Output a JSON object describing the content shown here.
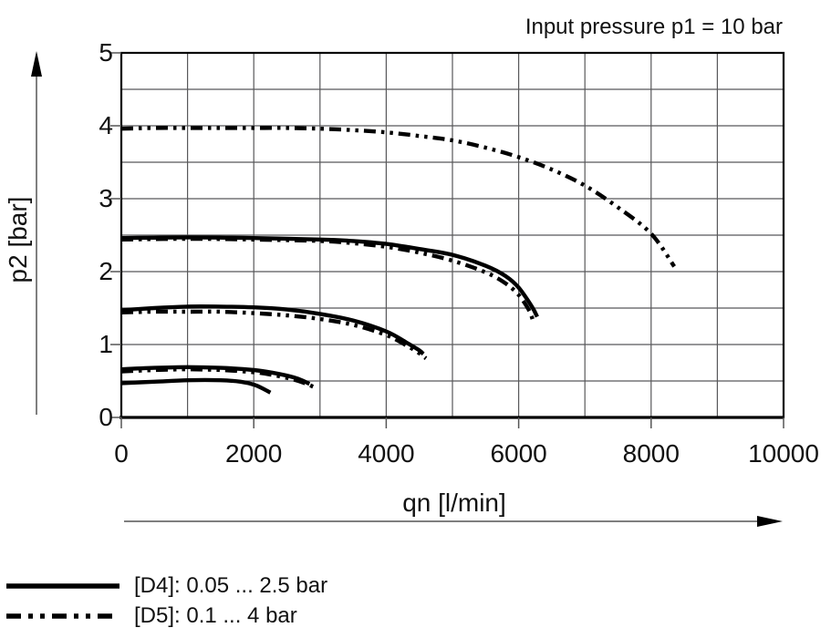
{
  "title": "Input pressure p1 = 10 bar",
  "chart_data": {
    "type": "line",
    "title": "Input pressure p1 = 10 bar",
    "xlabel": "qn [l/min]",
    "ylabel": "p2 [bar]",
    "xlim": [
      0,
      10000
    ],
    "ylim": [
      0,
      5
    ],
    "x_ticks": [
      0,
      2000,
      4000,
      6000,
      8000,
      10000
    ],
    "y_ticks": [
      0,
      1,
      2,
      3,
      4,
      5
    ],
    "x_grid_step": 1000,
    "y_grid_step": 0.5,
    "grid": "on",
    "colors": {
      "curve": "#000000",
      "grid": "#58585a",
      "axis": "#000000",
      "tick": "#555555",
      "text": "#111111"
    },
    "series": [
      {
        "id": "d5-4bar",
        "name": "[D5] setting 4 bar",
        "style": "dash-dot-dot",
        "points": [
          [
            0,
            3.96
          ],
          [
            500,
            3.97
          ],
          [
            1000,
            3.97
          ],
          [
            1500,
            3.97
          ],
          [
            2000,
            3.97
          ],
          [
            2500,
            3.97
          ],
          [
            3000,
            3.96
          ],
          [
            3500,
            3.94
          ],
          [
            4000,
            3.91
          ],
          [
            4500,
            3.86
          ],
          [
            5000,
            3.8
          ],
          [
            5500,
            3.7
          ],
          [
            6000,
            3.57
          ],
          [
            6500,
            3.4
          ],
          [
            7000,
            3.18
          ],
          [
            7500,
            2.88
          ],
          [
            8000,
            2.52
          ],
          [
            8350,
            2.07
          ]
        ]
      },
      {
        "id": "d5-2.5bar",
        "name": "[D5] setting 2.5 bar",
        "style": "dash-dot-dot",
        "points": [
          [
            0,
            2.44
          ],
          [
            1000,
            2.45
          ],
          [
            2000,
            2.44
          ],
          [
            3000,
            2.42
          ],
          [
            3500,
            2.39
          ],
          [
            4000,
            2.34
          ],
          [
            4500,
            2.26
          ],
          [
            5000,
            2.15
          ],
          [
            5500,
            1.99
          ],
          [
            5800,
            1.84
          ],
          [
            6000,
            1.68
          ],
          [
            6150,
            1.48
          ],
          [
            6220,
            1.32
          ]
        ]
      },
      {
        "id": "d5-1.5bar",
        "name": "[D5] setting 1.5 bar",
        "style": "dash-dot-dot",
        "points": [
          [
            0,
            1.44
          ],
          [
            500,
            1.45
          ],
          [
            1000,
            1.45
          ],
          [
            1500,
            1.45
          ],
          [
            2000,
            1.43
          ],
          [
            2500,
            1.4
          ],
          [
            3000,
            1.35
          ],
          [
            3500,
            1.27
          ],
          [
            4000,
            1.13
          ],
          [
            4300,
            0.99
          ],
          [
            4500,
            0.88
          ],
          [
            4600,
            0.81
          ]
        ]
      },
      {
        "id": "d5-0.65bar",
        "name": "[D5] setting 0.65 bar",
        "style": "dash-dot-dot",
        "points": [
          [
            0,
            0.63
          ],
          [
            500,
            0.65
          ],
          [
            1000,
            0.66
          ],
          [
            1500,
            0.65
          ],
          [
            2000,
            0.62
          ],
          [
            2300,
            0.58
          ],
          [
            2600,
            0.52
          ],
          [
            2800,
            0.46
          ],
          [
            2900,
            0.42
          ]
        ]
      },
      {
        "id": "d4-2.5bar",
        "name": "[D4] setting 2.5 bar",
        "style": "solid",
        "points": [
          [
            0,
            2.46
          ],
          [
            1000,
            2.47
          ],
          [
            2000,
            2.46
          ],
          [
            3000,
            2.44
          ],
          [
            3500,
            2.42
          ],
          [
            4000,
            2.38
          ],
          [
            4500,
            2.31
          ],
          [
            5000,
            2.23
          ],
          [
            5500,
            2.08
          ],
          [
            5800,
            1.94
          ],
          [
            6000,
            1.78
          ],
          [
            6200,
            1.52
          ],
          [
            6280,
            1.38
          ]
        ]
      },
      {
        "id": "d4-1.5bar",
        "name": "[D4] setting 1.5 bar",
        "style": "solid",
        "points": [
          [
            0,
            1.47
          ],
          [
            500,
            1.5
          ],
          [
            1000,
            1.52
          ],
          [
            1500,
            1.52
          ],
          [
            2000,
            1.51
          ],
          [
            2500,
            1.48
          ],
          [
            3000,
            1.42
          ],
          [
            3500,
            1.33
          ],
          [
            4000,
            1.18
          ],
          [
            4300,
            1.03
          ],
          [
            4500,
            0.92
          ],
          [
            4560,
            0.87
          ]
        ]
      },
      {
        "id": "d4-0.68bar",
        "name": "[D4] setting 0.68 bar",
        "style": "solid",
        "points": [
          [
            0,
            0.66
          ],
          [
            500,
            0.68
          ],
          [
            1000,
            0.69
          ],
          [
            1500,
            0.68
          ],
          [
            2000,
            0.65
          ],
          [
            2300,
            0.61
          ],
          [
            2600,
            0.55
          ],
          [
            2750,
            0.5
          ],
          [
            2840,
            0.46
          ]
        ]
      },
      {
        "id": "d4-0.5bar",
        "name": "[D4] setting 0.5 bar",
        "style": "solid",
        "points": [
          [
            0,
            0.47
          ],
          [
            500,
            0.49
          ],
          [
            1000,
            0.51
          ],
          [
            1500,
            0.51
          ],
          [
            1800,
            0.49
          ],
          [
            2000,
            0.45
          ],
          [
            2150,
            0.39
          ],
          [
            2250,
            0.34
          ]
        ]
      }
    ],
    "legend": {
      "position": "bottom-left",
      "items": [
        {
          "label": "[D4]: 0.05 ... 2.5 bar",
          "style": "solid"
        },
        {
          "label": "[D5]: 0.1 ... 4 bar",
          "style": "dash-dot-dot"
        }
      ]
    }
  }
}
